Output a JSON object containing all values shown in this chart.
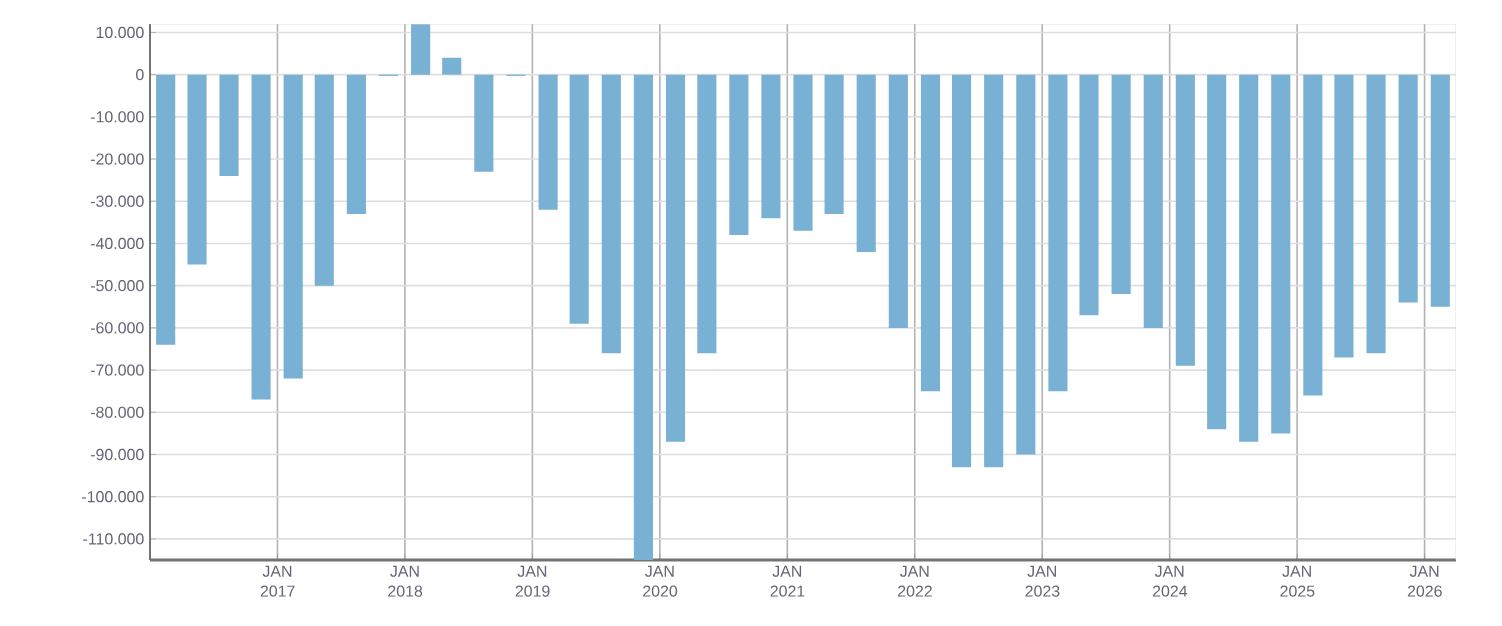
{
  "chart_data": {
    "type": "bar",
    "color": "#78b1d3",
    "x": [
      "2016-02-15",
      "2016-05-15",
      "2016-08-15",
      "2016-11-15",
      "2017-02-15",
      "2017-05-15",
      "2017-08-15",
      "2017-11-15",
      "2018-02-15",
      "2018-05-15",
      "2018-08-15",
      "2018-11-15",
      "2019-02-15",
      "2019-05-15",
      "2019-08-15",
      "2019-11-15",
      "2020-02-15",
      "2020-05-15",
      "2020-08-15",
      "2020-11-15",
      "2021-02-15",
      "2021-05-15",
      "2021-08-15",
      "2021-11-15",
      "2022-02-15",
      "2022-05-15",
      "2022-08-15",
      "2022-11-15",
      "2023-02-15",
      "2023-05-15",
      "2023-08-15",
      "2023-11-15",
      "2024-02-15",
      "2024-05-15",
      "2024-08-15",
      "2024-11-15",
      "2025-02-15",
      "2025-05-15",
      "2025-08-15",
      "2025-11-15",
      "2026-02-15"
    ],
    "values": [
      -64000,
      -45000,
      -24000,
      -77000,
      -72000,
      -50000,
      -33000,
      -300,
      12000,
      4000,
      -23000,
      -300,
      -32000,
      -59000,
      -66000,
      -115000,
      -87000,
      -66000,
      -38000,
      -34000,
      -37000,
      -33000,
      -42000,
      -60000,
      -75000,
      -93000,
      -93000,
      -90000,
      -75000,
      -57000,
      -52000,
      -60000,
      -69000,
      -84000,
      -87000,
      -85000,
      -76000,
      -67000,
      -66000,
      -54000,
      -55000
    ],
    "xlim": [
      "2016-01-01",
      "2026-04-01"
    ],
    "xticks": [
      {
        "value": "2017-01-01",
        "label": "JAN 2017"
      },
      {
        "value": "2018-01-01",
        "label": "JAN 2018"
      },
      {
        "value": "2019-01-01",
        "label": "JAN 2019"
      },
      {
        "value": "2020-01-01",
        "label": "JAN 2020"
      },
      {
        "value": "2021-01-01",
        "label": "JAN 2021"
      },
      {
        "value": "2022-01-01",
        "label": "JAN 2022"
      },
      {
        "value": "2023-01-01",
        "label": "JAN 2023"
      },
      {
        "value": "2024-01-01",
        "label": "JAN 2024"
      },
      {
        "value": "2025-01-01",
        "label": "JAN 2025"
      },
      {
        "value": "2026-01-01",
        "label": "JAN 2026"
      }
    ],
    "ylim": [
      -115000,
      12000
    ],
    "yticks": [
      {
        "value": 10000,
        "label": "10.000"
      },
      0,
      {
        "value": -10000,
        "label": "-10.000"
      },
      {
        "value": -20000,
        "label": "-20.000"
      },
      {
        "value": -30000,
        "label": "-30.000"
      },
      {
        "value": -40000,
        "label": "-40.000"
      },
      {
        "value": -50000,
        "label": "-50.000"
      },
      {
        "value": -60000,
        "label": "-60.000"
      },
      {
        "value": -70000,
        "label": "-70.000"
      },
      {
        "value": -80000,
        "label": "-80.000"
      },
      {
        "value": -90000,
        "label": "-90.000"
      },
      {
        "value": -100000,
        "label": "-100.000"
      },
      {
        "value": -110000,
        "label": "-110.000"
      }
    ],
    "grid": true
  }
}
